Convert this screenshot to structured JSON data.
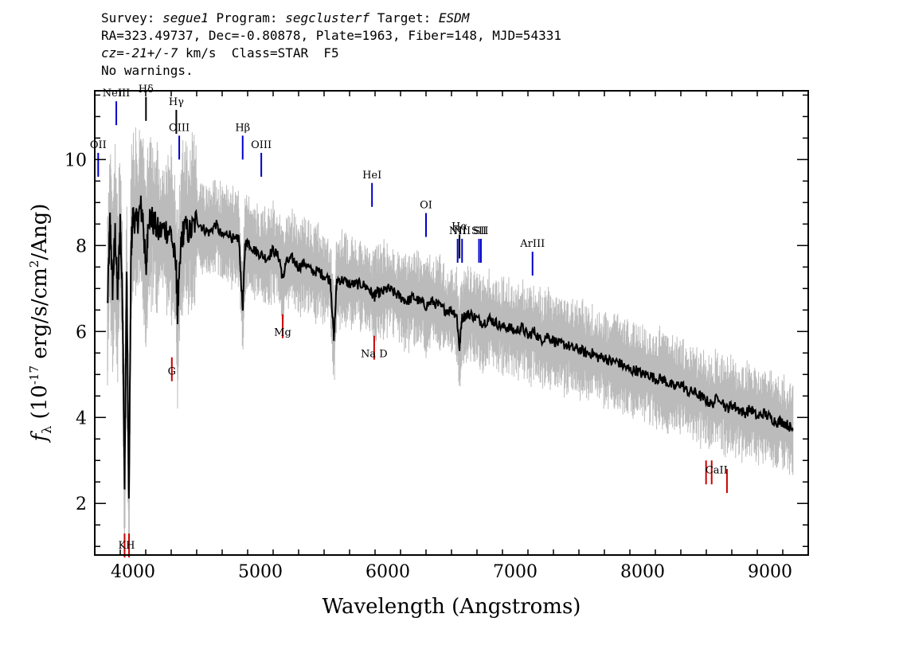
{
  "header": {
    "line1": {
      "p1": "Survey: ",
      "survey": "segue1",
      "p2": " Program: ",
      "program": "segclusterf",
      "p3": " Target: ",
      "target": "ESDM"
    },
    "line2": "RA=323.49737, Dec=-0.80878, Plate=1963, Fiber=148, MJD=54331",
    "line3": {
      "cz_label": "cz=",
      "cz_value": "-21+/-7",
      "rest": " km/s  Class=STAR  F5"
    },
    "line4": "No warnings."
  },
  "chart_data": {
    "type": "line",
    "xlabel": "Wavelength (Angstroms)",
    "ylabel": "f_λ (10^-17 erg/s/cm²/Ang)",
    "xlim": [
      3700,
      9300
    ],
    "ylim": [
      0.8,
      11.6
    ],
    "xticks": [
      4000,
      5000,
      6000,
      7000,
      8000,
      9000
    ],
    "yticks": [
      2,
      4,
      6,
      8,
      10
    ],
    "grid": false,
    "series": [
      {
        "role": "smoothed-flux",
        "color": "#000000",
        "x": [
          3800,
          3820,
          3840,
          3860,
          3880,
          3900,
          3920,
          3934,
          3950,
          3968,
          3985,
          4000,
          4030,
          4060,
          4080,
          4102,
          4120,
          4150,
          4200,
          4250,
          4300,
          4340,
          4350,
          4380,
          4400,
          4450,
          4500,
          4550,
          4600,
          4650,
          4700,
          4750,
          4800,
          4830,
          4861,
          4880,
          4900,
          4950,
          5000,
          5050,
          5100,
          5150,
          5175,
          5200,
          5250,
          5300,
          5350,
          5400,
          5450,
          5500,
          5550,
          5577,
          5600,
          5650,
          5700,
          5750,
          5800,
          5850,
          5893,
          5910,
          5950,
          6000,
          6050,
          6100,
          6150,
          6200,
          6250,
          6300,
          6350,
          6400,
          6450,
          6500,
          6540,
          6563,
          6580,
          6620,
          6650,
          6700,
          6750,
          6800,
          6850,
          6900,
          6950,
          7000,
          7050,
          7100,
          7150,
          7200,
          7250,
          7300,
          7350,
          7400,
          7450,
          7500,
          7550,
          7600,
          7650,
          7700,
          7750,
          7800,
          7850,
          7900,
          7950,
          8000,
          8050,
          8100,
          8150,
          8200,
          8250,
          8300,
          8350,
          8400,
          8450,
          8498,
          8542,
          8600,
          8662,
          8700,
          8750,
          8800,
          8850,
          8900,
          8950,
          9000,
          9050,
          9100,
          9150,
          9180
        ],
        "y": [
          6.6,
          8.6,
          7.0,
          8.3,
          6.8,
          8.6,
          6.4,
          2.3,
          7.4,
          1.9,
          7.9,
          8.7,
          8.5,
          8.9,
          8.6,
          7.3,
          8.7,
          8.6,
          8.3,
          8.4,
          8.3,
          7.4,
          6.4,
          8.1,
          8.4,
          8.3,
          8.6,
          8.4,
          8.3,
          8.5,
          8.2,
          8.3,
          8.1,
          8.2,
          6.5,
          8.0,
          8.1,
          7.9,
          7.8,
          7.7,
          7.9,
          7.7,
          7.2,
          7.6,
          7.7,
          7.5,
          7.6,
          7.4,
          7.4,
          7.3,
          7.2,
          5.8,
          7.2,
          7.2,
          7.1,
          7.1,
          7.1,
          7.0,
          6.8,
          6.9,
          6.9,
          7.0,
          6.9,
          6.8,
          6.7,
          6.8,
          6.7,
          6.6,
          6.7,
          6.6,
          6.5,
          6.5,
          6.4,
          5.6,
          6.3,
          6.4,
          6.4,
          6.3,
          6.2,
          6.3,
          6.2,
          6.1,
          6.1,
          6.0,
          6.1,
          5.9,
          6.0,
          5.8,
          5.9,
          5.8,
          5.7,
          5.7,
          5.6,
          5.6,
          5.5,
          5.5,
          5.4,
          5.4,
          5.3,
          5.3,
          5.2,
          5.1,
          5.1,
          5.0,
          5.0,
          4.9,
          4.9,
          4.8,
          4.7,
          4.8,
          4.6,
          4.6,
          4.5,
          4.4,
          4.3,
          4.5,
          4.2,
          4.3,
          4.2,
          4.1,
          4.2,
          4.0,
          4.1,
          4.0,
          3.9,
          3.9,
          3.8,
          3.7
        ]
      }
    ],
    "emission_lines": [
      {
        "label": "OII",
        "x": 3727,
        "y": 9.6,
        "color": "#0000cc"
      },
      {
        "label": "NeIII",
        "x": 3869,
        "y": 10.8,
        "color": "#0000cc"
      },
      {
        "label": "Hδ",
        "x": 4102,
        "y": 10.9,
        "color": "#000000"
      },
      {
        "label": "Hγ",
        "x": 4340,
        "y": 10.6,
        "color": "#000000"
      },
      {
        "label": "OIII",
        "x": 4363,
        "y": 10.0,
        "color": "#0000cc"
      },
      {
        "label": "Hβ",
        "x": 4861,
        "y": 10.0,
        "color": "#0000cc"
      },
      {
        "label": "OIII",
        "x": 5007,
        "y": 9.6,
        "color": "#0000cc"
      },
      {
        "label": "HeI",
        "x": 5876,
        "y": 8.9,
        "color": "#0000cc"
      },
      {
        "label": "OI",
        "x": 6300,
        "y": 8.2,
        "color": "#0000cc"
      },
      {
        "label": "NII",
        "x": 6548,
        "y": 7.6,
        "color": "#0000cc"
      },
      {
        "label": "Hα",
        "x": 6563,
        "y": 7.7,
        "color": "#000000"
      },
      {
        "label": "NII",
        "x": 6583,
        "y": 7.6,
        "color": "#0000cc"
      },
      {
        "label": "SII",
        "x": 6716,
        "y": 7.6,
        "color": "#0000cc"
      },
      {
        "label": "SII",
        "x": 6731,
        "y": 7.6,
        "color": "#0000cc"
      },
      {
        "label": "ArIII",
        "x": 7136,
        "y": 7.3,
        "color": "#0000cc"
      }
    ],
    "absorption_lines": [
      {
        "label": "K",
        "x": 3934,
        "y": 1.3,
        "color": "#cc0000"
      },
      {
        "label": "H",
        "x": 3969,
        "y": 1.3,
        "color": "#cc0000"
      },
      {
        "label": "G",
        "x": 4305,
        "y": 5.4,
        "color": "#cc0000"
      },
      {
        "label": "Mg",
        "x": 5175,
        "y": 6.4,
        "color": "#cc0000"
      },
      {
        "label": "Na D",
        "x": 5893,
        "y": 5.9,
        "color": "#cc0000"
      },
      {
        "label": "CaII",
        "x": 8498,
        "y": 3.0,
        "color": "#cc0000"
      },
      {
        "label": "CaII",
        "x": 8542,
        "y": 3.0,
        "color": "#cc0000"
      },
      {
        "label": "CaII",
        "x": 8662,
        "y": 2.8,
        "color": "#cc0000"
      }
    ],
    "line_label_text": {
      "KH": "KH",
      "G": "G",
      "Mg": "Mg",
      "NaD": "Na  D",
      "CaII": "CaII"
    },
    "colors": {
      "flux": "#000000",
      "flux_noise": "#bbbbbb",
      "emission": "#0000cc",
      "absorption": "#cc0000"
    }
  }
}
